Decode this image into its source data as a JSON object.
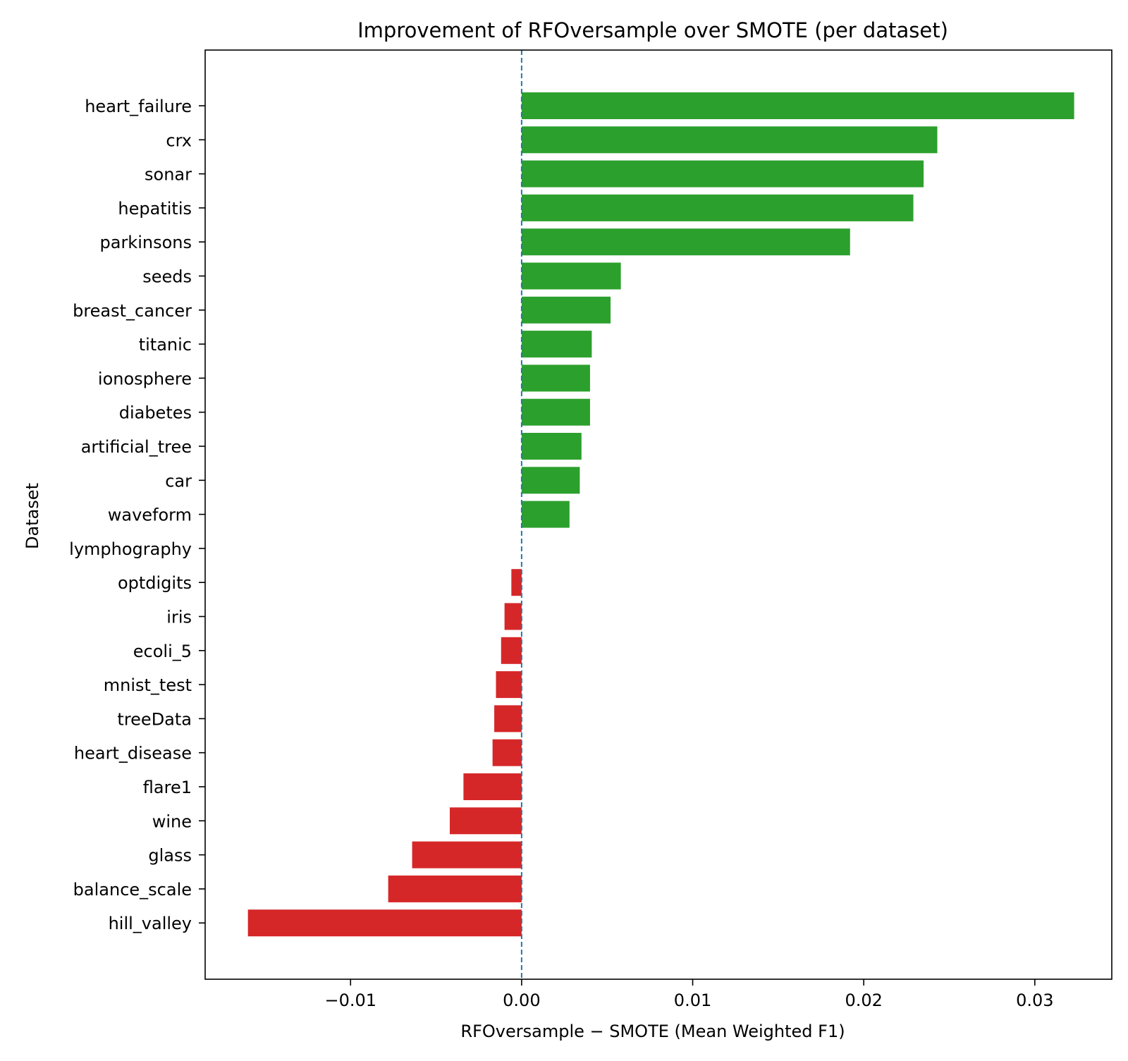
{
  "chart_data": {
    "type": "bar",
    "orientation": "horizontal",
    "title": "Improvement of RFOversample over SMOTE (per dataset)",
    "xlabel": "RFOversample − SMOTE (Mean Weighted F1)",
    "ylabel": "Dataset",
    "xlim": [
      -0.0185,
      0.0345
    ],
    "xticks": [
      -0.01,
      0.0,
      0.01,
      0.02,
      0.03
    ],
    "xtick_labels": [
      "−0.01",
      "0.00",
      "0.01",
      "0.02",
      "0.03"
    ],
    "reference_line": {
      "x": 0.0,
      "style": "dashed",
      "color": "#1f77b4"
    },
    "positive_color": "#2ca02c",
    "negative_color": "#d62728",
    "categories": [
      "heart_failure",
      "crx",
      "sonar",
      "hepatitis",
      "parkinsons",
      "seeds",
      "breast_cancer",
      "titanic",
      "ionosphere",
      "diabetes",
      "artificial_tree",
      "car",
      "waveform",
      "lymphography",
      "optdigits",
      "iris",
      "ecoli_5",
      "mnist_test",
      "treeData",
      "heart_disease",
      "flare1",
      "wine",
      "glass",
      "balance_scale",
      "hill_valley"
    ],
    "values": [
      0.0323,
      0.0243,
      0.0235,
      0.0229,
      0.0192,
      0.0058,
      0.0052,
      0.0041,
      0.004,
      0.004,
      0.0035,
      0.0034,
      0.0028,
      0.0,
      -0.0006,
      -0.001,
      -0.0012,
      -0.0015,
      -0.0016,
      -0.0017,
      -0.0034,
      -0.0042,
      -0.0064,
      -0.0078,
      -0.016
    ]
  }
}
